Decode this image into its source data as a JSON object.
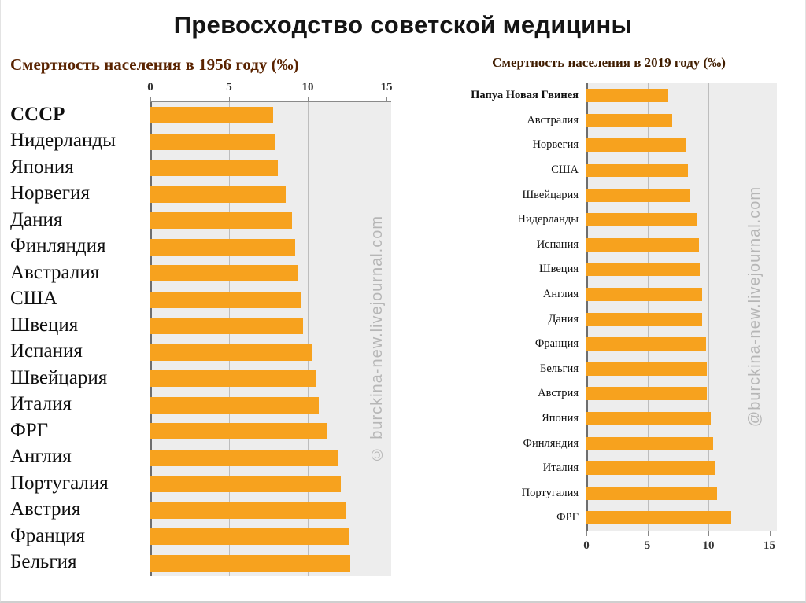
{
  "page_title": "Превосходство советской медицины",
  "colors": {
    "bar": "#f7a21e",
    "plot_background": "#ededed",
    "gridline": "#bdbdbd",
    "subtitle_left": "#5a2300",
    "subtitle_right": "#401d00"
  },
  "chart_data": [
    {
      "type": "bar",
      "orientation": "horizontal",
      "title": "Смертность населения в 1956 году (‰)",
      "axis_position": "top",
      "xlim": [
        0,
        15
      ],
      "ticks": [
        0,
        5,
        10,
        15
      ],
      "grid": true,
      "bold_category": "СССР",
      "watermark": "© burckina-new.livejournal.com",
      "categories": [
        "СССР",
        "Нидерланды",
        "Япония",
        "Норвегия",
        "Дания",
        "Финляндия",
        "Австралия",
        "США",
        "Швеция",
        "Испания",
        "Швейцария",
        "Италия",
        "ФРГ",
        "Англия",
        "Португалия",
        "Австрия",
        "Франция",
        "Бельгия"
      ],
      "values": [
        7.8,
        7.9,
        8.1,
        8.6,
        9.0,
        9.2,
        9.4,
        9.6,
        9.7,
        10.3,
        10.5,
        10.7,
        11.2,
        11.9,
        12.1,
        12.4,
        12.6,
        12.7
      ]
    },
    {
      "type": "bar",
      "orientation": "horizontal",
      "title": "Смертность населения в 2019 году (‰)",
      "axis_position": "bottom",
      "xlim": [
        0,
        15
      ],
      "ticks": [
        0,
        5,
        10,
        15
      ],
      "grid": true,
      "bold_category": "Папуа Новая Гвинея",
      "watermark": "@burckina-new.livejournal.com",
      "categories": [
        "Папуа Новая Гвинея",
        "Австралия",
        "Норвегия",
        "США",
        "Швейцария",
        "Нидерланды",
        "Испания",
        "Швеция",
        "Англия",
        "Дания",
        "Франция",
        "Бельгия",
        "Австрия",
        "Япония",
        "Финляндия",
        "Италия",
        "Португалия",
        "ФРГ"
      ],
      "values": [
        6.7,
        7.0,
        8.1,
        8.3,
        8.5,
        9.0,
        9.2,
        9.3,
        9.5,
        9.5,
        9.8,
        9.9,
        9.9,
        10.2,
        10.4,
        10.6,
        10.7,
        11.9
      ]
    }
  ]
}
